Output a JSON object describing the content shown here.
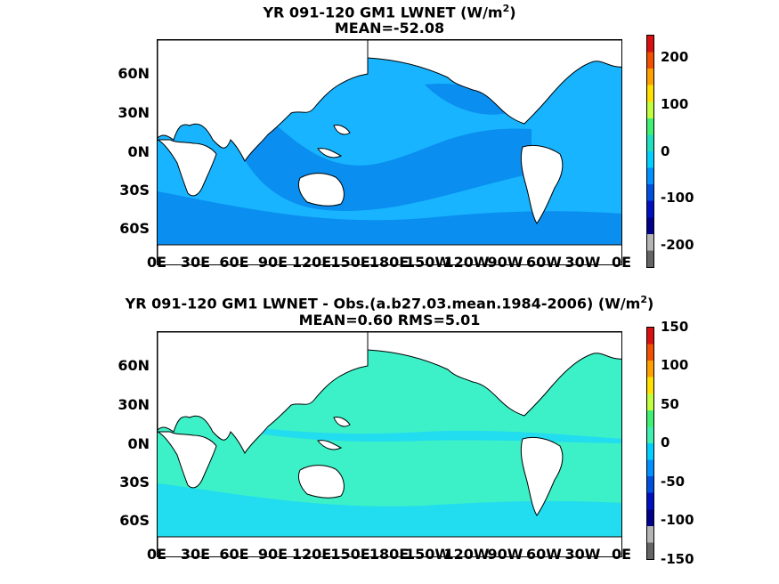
{
  "panels": [
    {
      "title_main": "YR 091-120 GM1  LWNET (W/m",
      "title_sup": "2",
      "title_end": ")",
      "subtitle": "MEAN=-52.08",
      "lat_labels": [
        "60N",
        "30N",
        "0N",
        "30S",
        "60S"
      ],
      "lon_labels": [
        "0E",
        "30E",
        "60E",
        "90E",
        "120E",
        "150E",
        "180E",
        "150W",
        "120W",
        "90W",
        "60W",
        "30W",
        "0E"
      ],
      "colorbar_labels": [
        "200",
        "100",
        "0",
        "-100",
        "-200"
      ],
      "colorbar_colors": [
        "#d81010",
        "#f05000",
        "#ffa000",
        "#ffe000",
        "#c0ff40",
        "#40f070",
        "#20e0c0",
        "#00d0ff",
        "#0090ff",
        "#0050e0",
        "#0010c0",
        "#00008a",
        "#b4b4b4",
        "#646464"
      ],
      "ocean_color": "#18b4ff",
      "band_color": "#0a8ef0"
    },
    {
      "title_main": "YR 091-120 GM1 LWNET - Obs.(a.b27.03.mean.1984-2006) (W/m",
      "title_sup": "2",
      "title_end": ")",
      "subtitle": "MEAN=0.60 RMS=5.01",
      "lat_labels": [
        "60N",
        "30N",
        "0N",
        "30S",
        "60S"
      ],
      "lon_labels": [
        "0E",
        "30E",
        "60E",
        "90E",
        "120E",
        "150E",
        "180E",
        "150W",
        "120W",
        "90W",
        "60W",
        "30W",
        "0E"
      ],
      "colorbar_labels": [
        "150",
        "100",
        "50",
        "0",
        "-50",
        "-100",
        "-150"
      ],
      "colorbar_colors": [
        "#d81010",
        "#f05000",
        "#ffa000",
        "#ffe000",
        "#c0ff40",
        "#40f070",
        "#40f0b0",
        "#00d0ff",
        "#0090ff",
        "#0050e0",
        "#0010c0",
        "#00008a",
        "#b4b4b4",
        "#646464"
      ],
      "ocean_color": "#3cf0c8",
      "band_color": "#22dcf0"
    }
  ]
}
